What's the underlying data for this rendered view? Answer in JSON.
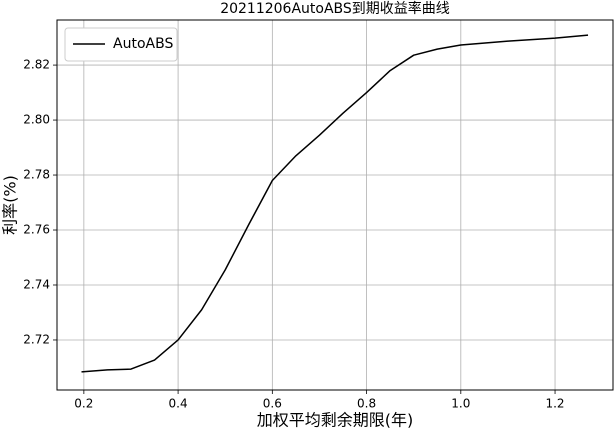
{
  "chart_data": {
    "type": "line",
    "title": "20211206AutoABS到期收益率曲线",
    "x_label": "加权平均剩余期限(年)",
    "y_label": "利率(%)",
    "x": [
      0.195,
      0.25,
      0.3,
      0.35,
      0.4,
      0.45,
      0.5,
      0.55,
      0.6,
      0.65,
      0.7,
      0.75,
      0.8,
      0.85,
      0.9,
      0.95,
      1.0,
      1.1,
      1.2,
      1.27
    ],
    "series": [
      {
        "name": "AutoABS",
        "color": "#000000",
        "values": [
          2.7084,
          2.7091,
          2.7094,
          2.7127,
          2.72,
          2.731,
          2.7455,
          2.762,
          2.778,
          2.787,
          2.7945,
          2.8025,
          2.81,
          2.818,
          2.8236,
          2.8258,
          2.8273,
          2.8287,
          2.8298,
          2.8309
        ]
      }
    ],
    "xlim": [
      0.143,
      1.323
    ],
    "ylim": [
      2.7018,
      2.8364
    ],
    "xticks": [
      0.2,
      0.4,
      0.6,
      0.8,
      {
        "value": 1,
        "label": "1.0"
      },
      1.2
    ],
    "yticks": [
      2.72,
      2.74,
      2.76,
      2.78,
      {
        "value": 2.8,
        "label": "2.80"
      },
      2.82
    ],
    "grid": true,
    "legend": "upper-left"
  }
}
